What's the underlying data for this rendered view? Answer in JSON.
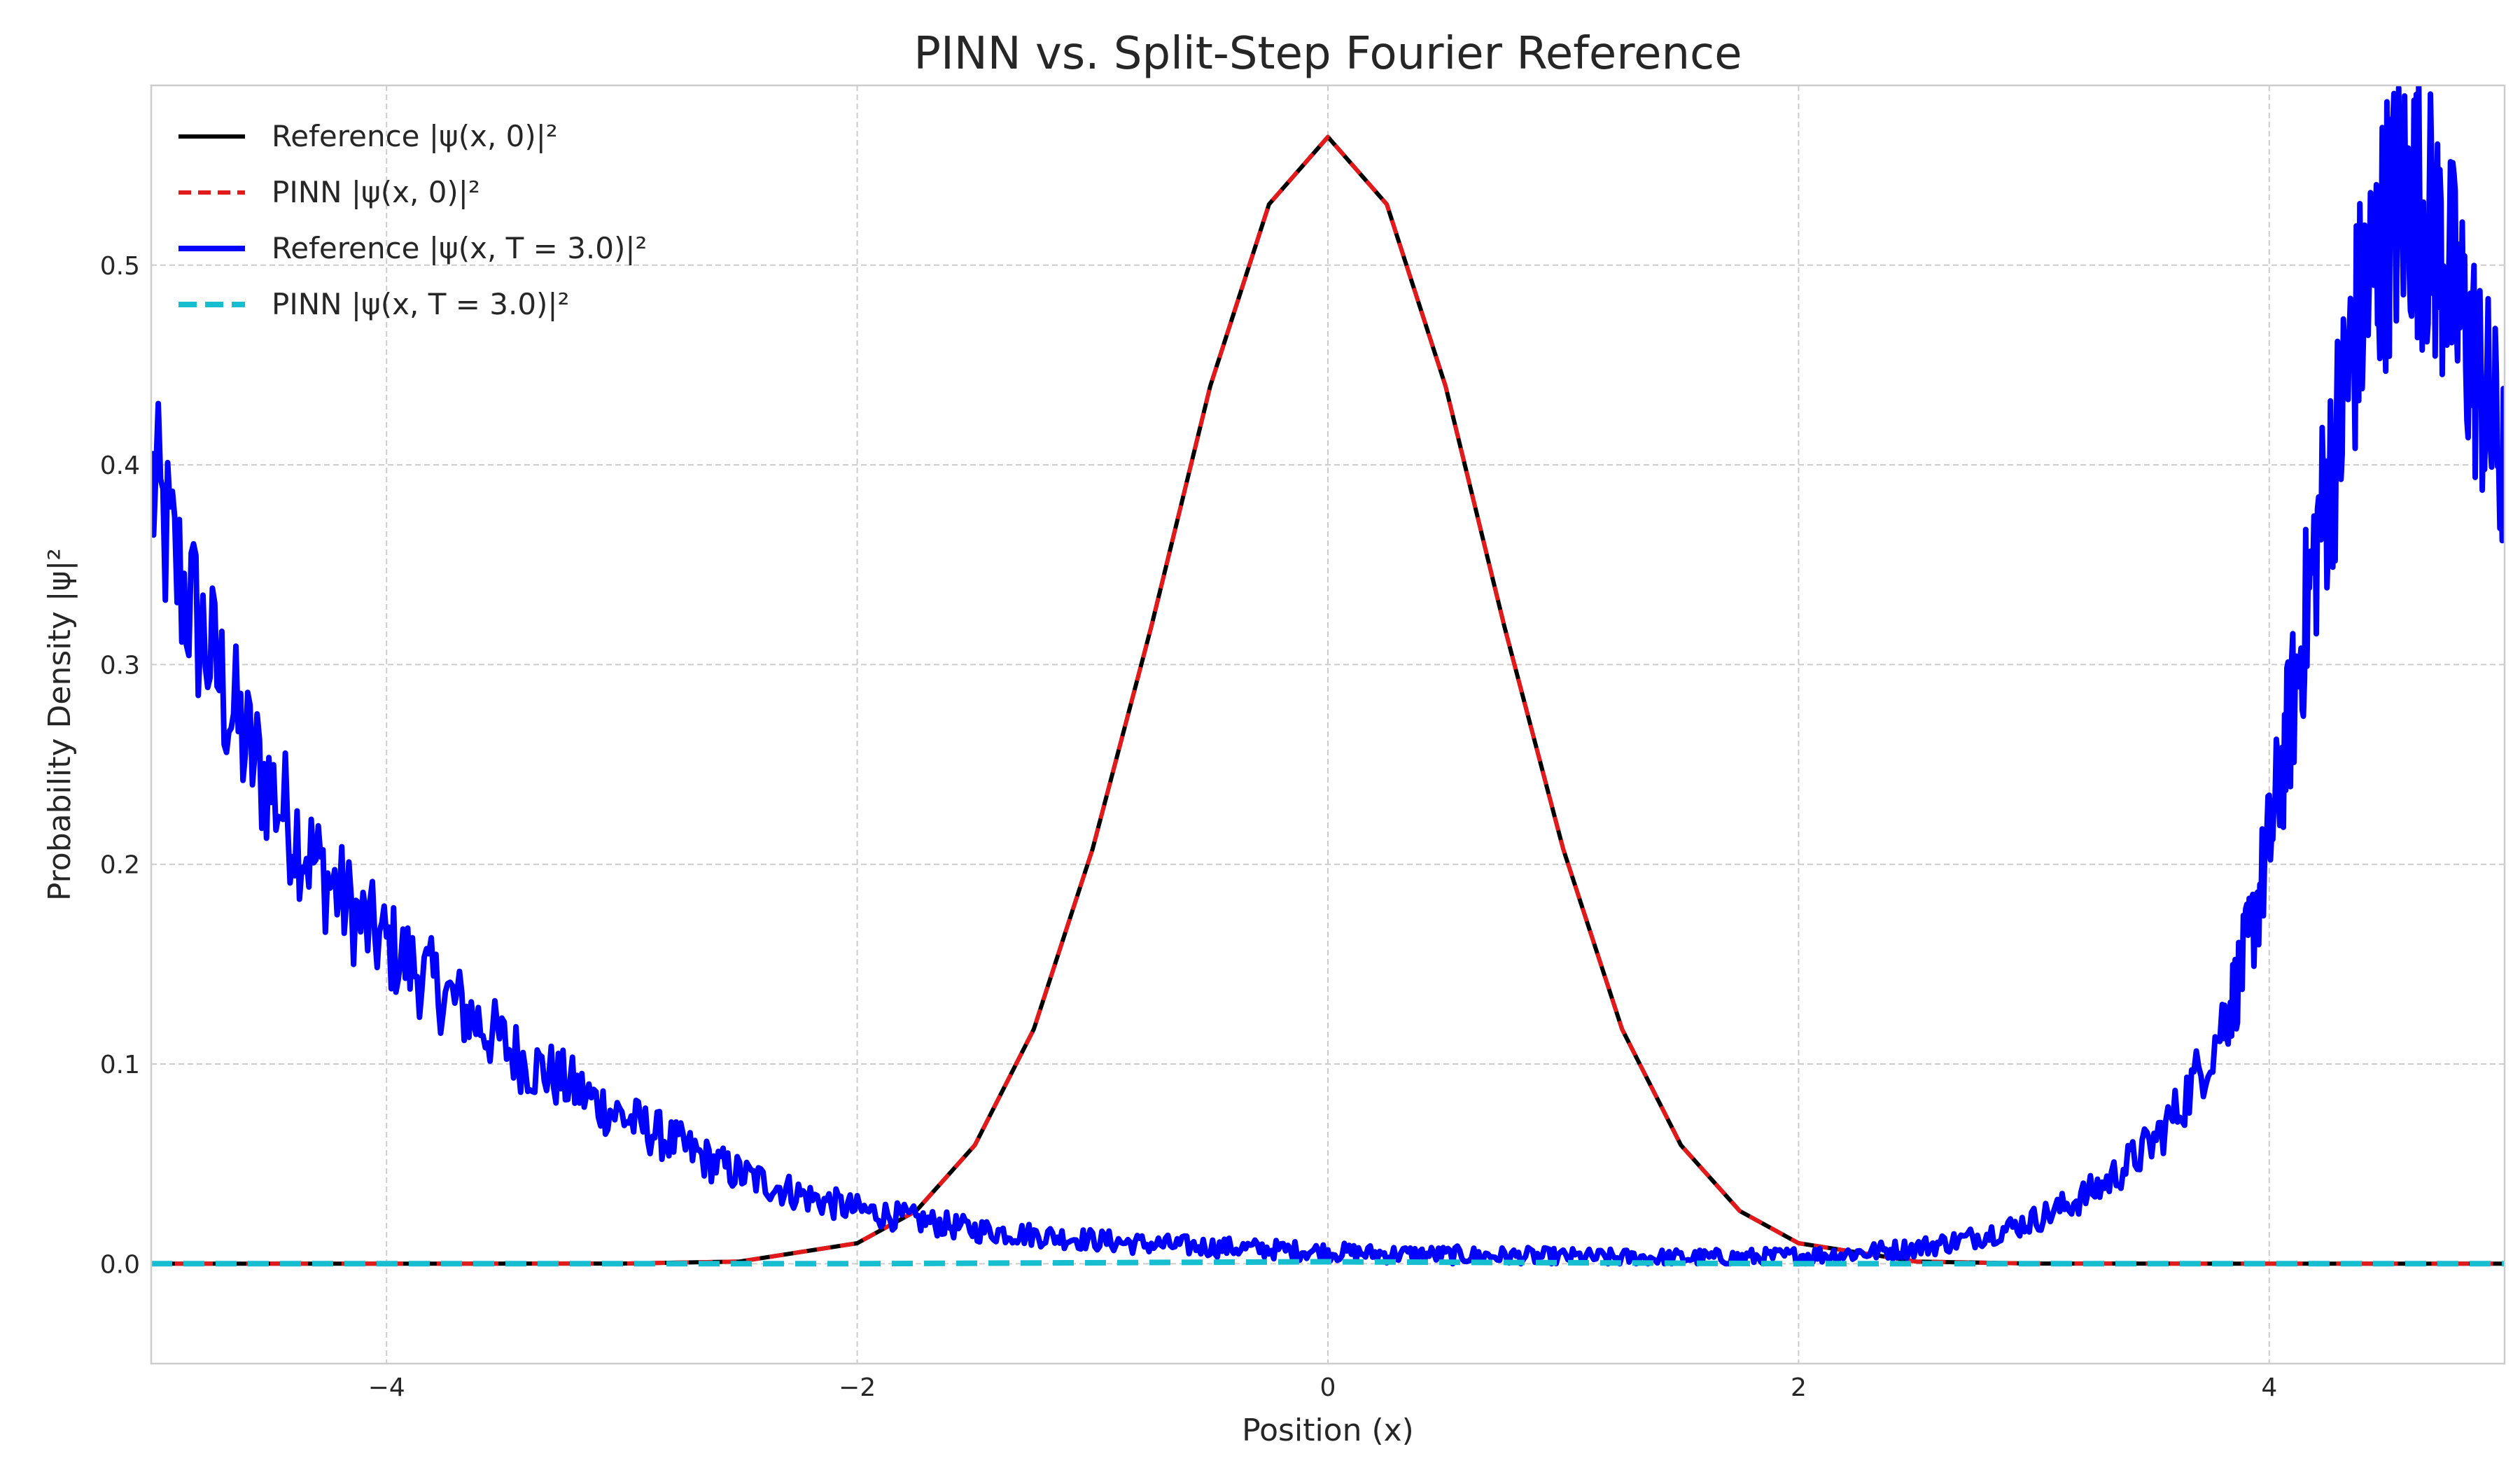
{
  "chart_data": {
    "type": "line",
    "title": "PINN vs. Split-Step Fourier Reference",
    "xlabel": "Position (x)",
    "ylabel": "Probability Density |ψ|²",
    "xlim": [
      -5,
      5
    ],
    "ylim": [
      -0.05,
      0.59
    ],
    "xticks": [
      -4,
      -2,
      0,
      2,
      4
    ],
    "xtick_labels": [
      "−4",
      "−2",
      "0",
      "2",
      "4"
    ],
    "yticks": [
      0.0,
      0.1,
      0.2,
      0.3,
      0.4,
      0.5
    ],
    "ytick_labels": [
      "0.0",
      "0.1",
      "0.2",
      "0.3",
      "0.4",
      "0.5"
    ],
    "grid": true,
    "legend_position": "top-left",
    "series": [
      {
        "name": "Reference |ψ(x, 0)|²",
        "color": "#000000",
        "style": "solid",
        "x": [
          -5,
          -4,
          -3,
          -2.5,
          -2,
          -1.75,
          -1.5,
          -1.25,
          -1,
          -0.75,
          -0.5,
          -0.25,
          0,
          0.25,
          0.5,
          0.75,
          1,
          1.25,
          1.5,
          1.75,
          2,
          2.5,
          3,
          4,
          5
        ],
        "y": [
          0.0,
          0.0,
          0.0001,
          0.0011,
          0.0103,
          0.0264,
          0.0594,
          0.1174,
          0.2076,
          0.3191,
          0.4394,
          0.5305,
          0.5642,
          0.5305,
          0.4394,
          0.3191,
          0.2076,
          0.1174,
          0.0594,
          0.0264,
          0.0103,
          0.0011,
          0.0001,
          0.0,
          0.0
        ]
      },
      {
        "name": "PINN |ψ(x, 0)|²",
        "color": "#e31a1c",
        "style": "dashed",
        "x": [
          -5,
          -4,
          -3,
          -2.5,
          -2,
          -1.75,
          -1.5,
          -1.25,
          -1,
          -0.75,
          -0.5,
          -0.25,
          0,
          0.25,
          0.5,
          0.75,
          1,
          1.25,
          1.5,
          1.75,
          2,
          2.5,
          3,
          4,
          5
        ],
        "y": [
          0.0,
          0.0,
          0.0001,
          0.0011,
          0.0103,
          0.0264,
          0.0594,
          0.1174,
          0.2076,
          0.3191,
          0.4394,
          0.5305,
          0.5642,
          0.5305,
          0.4394,
          0.3191,
          0.2076,
          0.1174,
          0.0594,
          0.0264,
          0.0103,
          0.0011,
          0.0001,
          0.0,
          0.0
        ]
      },
      {
        "name": "Reference |ψ(x, T = 3.0)|²",
        "color": "#0000ff",
        "style": "solid",
        "x": [
          -5,
          -4.9,
          -4.8,
          -4.7,
          -4.6,
          -4.5,
          -4.4,
          -4.3,
          -4.2,
          -4.1,
          -4.0,
          -3.9,
          -3.8,
          -3.7,
          -3.6,
          -3.5,
          -3.4,
          -3.3,
          -3.2,
          -3.1,
          -3.0,
          -2.9,
          -2.8,
          -2.7,
          -2.6,
          -2.5,
          -2.4,
          -2.3,
          -2.2,
          -2.1,
          -2.0,
          -1.9,
          -1.8,
          -1.7,
          -1.6,
          -1.5,
          -1.4,
          -1.3,
          -1.2,
          -1.1,
          -1.0,
          -0.9,
          -0.8,
          -0.7,
          -0.6,
          -0.5,
          -0.4,
          -0.3,
          -0.2,
          -0.1,
          0.0,
          0.1,
          0.2,
          0.3,
          0.4,
          0.5,
          0.6,
          0.7,
          0.8,
          0.9,
          1.0,
          1.1,
          1.2,
          1.3,
          1.4,
          1.5,
          1.6,
          1.7,
          1.8,
          1.9,
          2.0,
          2.1,
          2.2,
          2.3,
          2.4,
          2.5,
          2.6,
          2.7,
          2.8,
          2.9,
          3.0,
          3.1,
          3.2,
          3.3,
          3.4,
          3.5,
          3.6,
          3.7,
          3.8,
          3.85,
          3.9,
          3.95,
          4.0,
          4.05,
          4.1,
          4.15,
          4.2,
          4.25,
          4.3,
          4.35,
          4.4,
          4.45,
          4.5,
          4.55,
          4.6,
          4.65,
          4.7,
          4.75,
          4.8,
          4.85,
          4.9,
          4.95,
          5.0
        ],
        "y": [
          0.39,
          0.35,
          0.32,
          0.29,
          0.26,
          0.24,
          0.22,
          0.2,
          0.185,
          0.17,
          0.16,
          0.15,
          0.14,
          0.13,
          0.12,
          0.11,
          0.1,
          0.095,
          0.088,
          0.08,
          0.074,
          0.068,
          0.062,
          0.056,
          0.05,
          0.045,
          0.041,
          0.037,
          0.033,
          0.03,
          0.027,
          0.025,
          0.023,
          0.021,
          0.019,
          0.017,
          0.016,
          0.015,
          0.014,
          0.013,
          0.012,
          0.011,
          0.01,
          0.0095,
          0.009,
          0.0085,
          0.008,
          0.0075,
          0.007,
          0.0065,
          0.006,
          0.0055,
          0.005,
          0.0048,
          0.0046,
          0.0044,
          0.0042,
          0.004,
          0.0038,
          0.0036,
          0.0034,
          0.0032,
          0.003,
          0.003,
          0.003,
          0.003,
          0.003,
          0.003,
          0.0032,
          0.0035,
          0.004,
          0.0045,
          0.005,
          0.006,
          0.007,
          0.008,
          0.01,
          0.012,
          0.015,
          0.018,
          0.022,
          0.027,
          0.033,
          0.04,
          0.05,
          0.06,
          0.075,
          0.095,
          0.12,
          0.135,
          0.155,
          0.18,
          0.21,
          0.245,
          0.28,
          0.32,
          0.36,
          0.39,
          0.42,
          0.455,
          0.48,
          0.5,
          0.52,
          0.53,
          0.535,
          0.53,
          0.515,
          0.5,
          0.48,
          0.46,
          0.44,
          0.42,
          0.395
        ]
      },
      {
        "name": "PINN |ψ(x, T = 3.0)|²",
        "color": "#17becf",
        "style": "dashed",
        "x": [
          -5,
          -2,
          0,
          2,
          5
        ],
        "y": [
          0.0,
          0.0,
          0.001,
          0.0,
          0.0
        ]
      }
    ]
  }
}
